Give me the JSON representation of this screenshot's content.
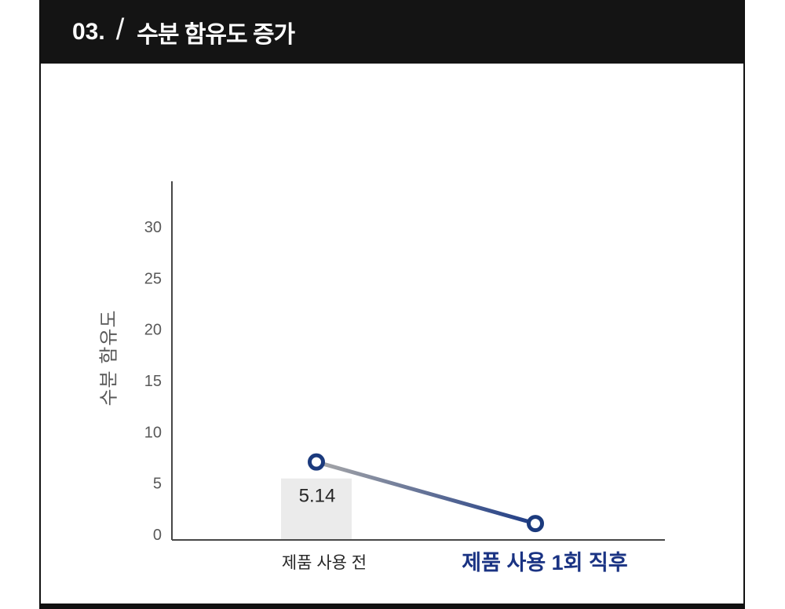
{
  "header": {
    "number": "03.",
    "separator": "/",
    "title": "수분 함유도 증가"
  },
  "colors": {
    "header_bg": "#141414",
    "frame": "#111111",
    "axis": "#474747",
    "tick_text": "#595959",
    "bar_fill": "#ebebeb",
    "bar_label_text": "#262626",
    "line_start": "#a8a8a8",
    "line_end": "#1e3c86",
    "marker": "#1b3a7d",
    "category_before": "#262626",
    "category_after": "#1a3383"
  },
  "chart_data": {
    "type": "combo",
    "categories": [
      "제품 사용 전",
      "제품 사용 1회 직후"
    ],
    "series": [
      {
        "name": "moisture-bar",
        "type": "bar",
        "values": [
          5.14,
          null
        ],
        "data_labels": [
          "5.14",
          ""
        ],
        "axis_max": 30
      },
      {
        "name": "trend-line",
        "type": "line",
        "values": [
          7.6,
          1.6
        ]
      }
    ],
    "ylabel": "수분 함유도",
    "xlabel": "",
    "yticks": [
      0,
      5,
      10,
      15,
      20,
      25,
      30
    ],
    "ylim": [
      0,
      35
    ],
    "grid": false,
    "legend": "none"
  }
}
